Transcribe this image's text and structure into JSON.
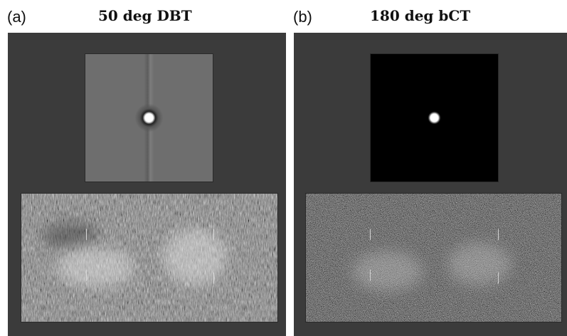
{
  "figure": {
    "panels": [
      {
        "letter": "(a)",
        "title": "50 deg DBT"
      },
      {
        "letter": "(b)",
        "title": "180 deg bCT"
      }
    ]
  },
  "colors": {
    "panel_background": "#3b3b3b",
    "dbt_background": "#6e6e6e",
    "bct_background": "#000000",
    "psf_spot": "#ffffff"
  }
}
